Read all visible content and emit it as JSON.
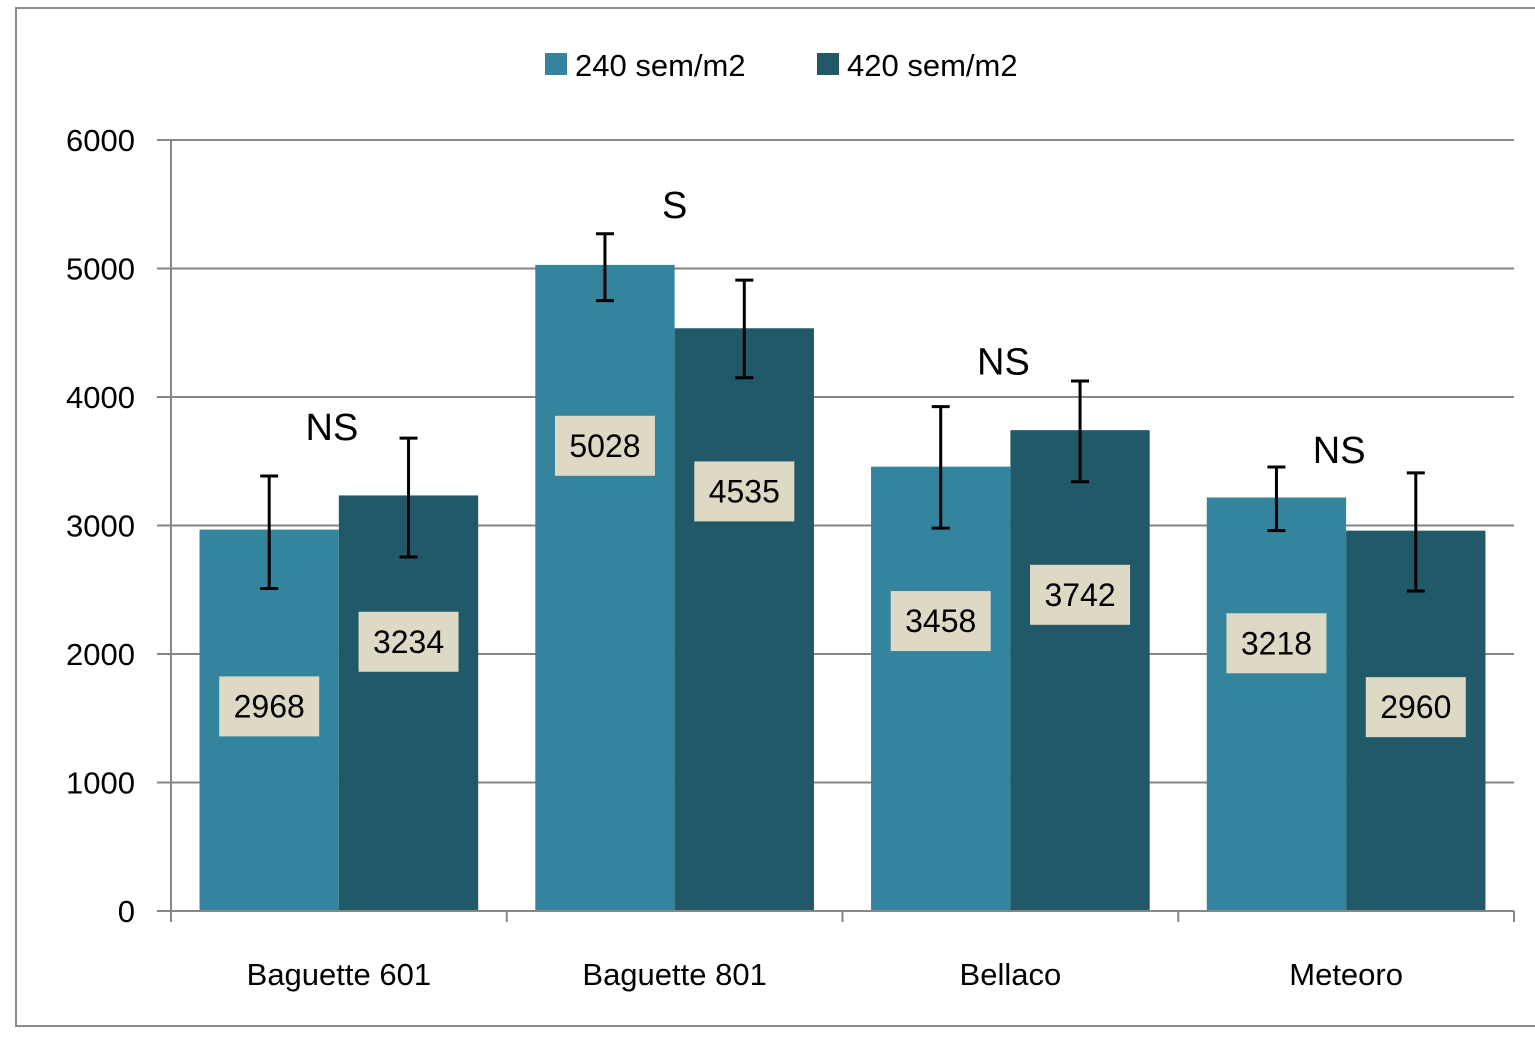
{
  "chart_data": {
    "type": "bar",
    "title": "",
    "xlabel": "",
    "ylabel": "",
    "categories": [
      "Baguette 601",
      "Baguette 801",
      "Bellaco",
      "Meteoro"
    ],
    "series": [
      {
        "name": "240 sem/m2",
        "color": "#34849E",
        "values": [
          2968,
          5028,
          3458,
          3218
        ],
        "value_labels": [
          "2968",
          "5028",
          "3458",
          "3218"
        ],
        "error_low": [
          2510,
          4750,
          2980,
          2960
        ],
        "error_high": [
          3385,
          5270,
          3925,
          3455
        ]
      },
      {
        "name": "420 sem/m2",
        "color": "#215968",
        "values": [
          3234,
          4535,
          3742,
          2960
        ],
        "value_labels": [
          "3234",
          "4535",
          "3742",
          "2960"
        ],
        "error_low": [
          2755,
          4150,
          3340,
          2490
        ],
        "error_high": [
          3680,
          4910,
          4125,
          3410
        ]
      }
    ],
    "significance": [
      "NS",
      "S",
      "NS",
      "NS"
    ],
    "ylim": [
      0,
      6000
    ],
    "yticks": [
      0,
      1000,
      2000,
      3000,
      4000,
      5000,
      6000
    ],
    "ytick_labels": [
      "0",
      "1000",
      "2000",
      "3000",
      "4000",
      "5000",
      "6000"
    ],
    "grid": true,
    "legend_position": "top-center",
    "data_label_bg": "#DDD9C4",
    "axis_color": "#868686",
    "grid_color": "#868686"
  }
}
